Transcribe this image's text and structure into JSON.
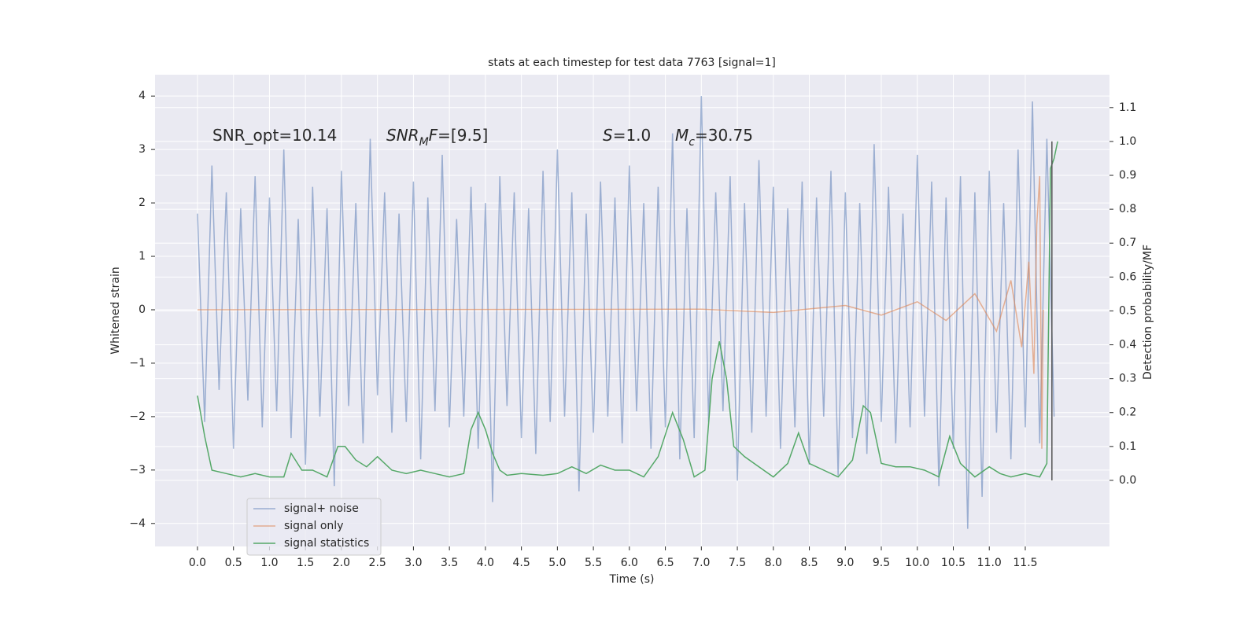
{
  "chart_data": {
    "type": "line",
    "title": "stats at each timestep for test data 7763 [signal=1]",
    "x_label": "Time (s)",
    "y_label": "Whitened strain",
    "y2_label": "Detection probability/MF",
    "xlim": [
      -0.59,
      12.67
    ],
    "ylim": [
      -4.43,
      4.4
    ],
    "y2lim": [
      -0.195,
      1.197
    ],
    "xticks": [
      {
        "value": 0,
        "label": "0.0"
      },
      0.5,
      {
        "value": 1,
        "label": "1.0"
      },
      1.5,
      {
        "value": 2,
        "label": "2.0"
      },
      2.5,
      {
        "value": 3,
        "label": "3.0"
      },
      3.5,
      {
        "value": 4,
        "label": "4.0"
      },
      4.5,
      {
        "value": 5,
        "label": "5.0"
      },
      5.5,
      {
        "value": 6,
        "label": "6.0"
      },
      6.5,
      {
        "value": 7,
        "label": "7.0"
      },
      7.5,
      {
        "value": 8,
        "label": "8.0"
      },
      8.5,
      {
        "value": 9,
        "label": "9.0"
      },
      9.5,
      {
        "value": 10,
        "label": "10.0"
      },
      10.5,
      {
        "value": 11,
        "label": "11.0"
      },
      11.5
    ],
    "yticks": [
      {
        "value": -4,
        "label": "−4"
      },
      {
        "value": -3,
        "label": "−3"
      },
      {
        "value": -2,
        "label": "−2"
      },
      {
        "value": -1,
        "label": "−1"
      },
      0,
      1,
      2,
      3,
      4
    ],
    "y2ticks": [
      {
        "value": 0,
        "label": "0.0"
      },
      0.1,
      0.2,
      0.3,
      0.4,
      0.5,
      0.6,
      0.7,
      0.8,
      0.9,
      {
        "value": 1,
        "label": "1.0"
      },
      1.1
    ],
    "grid": true,
    "legend": "lower left",
    "series": [
      {
        "name": "signal+ noise",
        "color": "#4c72b0",
        "opacity": 0.5,
        "x": [
          0,
          0.1,
          0.2,
          0.3,
          0.4,
          0.5,
          0.6,
          0.7,
          0.8,
          0.9,
          1,
          1.1,
          1.2,
          1.3,
          1.4,
          1.5,
          1.6,
          1.7,
          1.8,
          1.9,
          2,
          2.1,
          2.2,
          2.3,
          2.4,
          2.5,
          2.6,
          2.7,
          2.8,
          2.9,
          3,
          3.1,
          3.2,
          3.3,
          3.4,
          3.5,
          3.6,
          3.7,
          3.8,
          3.9,
          4,
          4.1,
          4.2,
          4.3,
          4.4,
          4.5,
          4.6,
          4.7,
          4.8,
          4.9,
          5,
          5.1,
          5.2,
          5.3,
          5.4,
          5.5,
          5.6,
          5.7,
          5.8,
          5.9,
          6,
          6.1,
          6.2,
          6.3,
          6.4,
          6.5,
          6.6,
          6.7,
          6.8,
          6.9,
          7,
          7.1,
          7.2,
          7.3,
          7.4,
          7.5,
          7.6,
          7.7,
          7.8,
          7.9,
          8,
          8.1,
          8.2,
          8.3,
          8.4,
          8.5,
          8.6,
          8.7,
          8.8,
          8.9,
          9,
          9.1,
          9.2,
          9.3,
          9.4,
          9.5,
          9.6,
          9.7,
          9.8,
          9.9,
          10,
          10.1,
          10.2,
          10.3,
          10.4,
          10.5,
          10.6,
          10.7,
          10.8,
          10.9,
          11,
          11.1,
          11.2,
          11.3,
          11.4,
          11.5,
          11.6,
          11.7,
          11.8,
          11.9
        ],
        "values": [
          1.8,
          -2.1,
          2.7,
          -1.5,
          2.2,
          -2.6,
          1.9,
          -1.7,
          2.5,
          -2.2,
          2.1,
          -1.9,
          3.0,
          -2.4,
          1.7,
          -2.9,
          2.3,
          -2.0,
          1.9,
          -3.3,
          2.6,
          -1.8,
          2.0,
          -2.5,
          3.2,
          -1.6,
          2.2,
          -2.3,
          1.8,
          -2.1,
          2.4,
          -2.8,
          2.1,
          -1.9,
          2.9,
          -2.2,
          1.7,
          -2.0,
          2.3,
          -2.6,
          2.0,
          -3.6,
          2.5,
          -1.8,
          2.2,
          -2.4,
          1.9,
          -2.7,
          2.6,
          -2.1,
          3.0,
          -2.0,
          2.2,
          -3.4,
          1.8,
          -2.3,
          2.4,
          -2.0,
          2.1,
          -2.5,
          2.7,
          -1.9,
          2.0,
          -2.6,
          2.3,
          -2.2,
          3.3,
          -2.8,
          1.9,
          -2.4,
          4.0,
          -2.1,
          2.2,
          -1.9,
          2.5,
          -3.2,
          2.0,
          -2.3,
          2.8,
          -2.0,
          2.3,
          -2.6,
          1.9,
          -2.2,
          2.4,
          -2.9,
          2.1,
          -2.0,
          2.6,
          -3.1,
          2.2,
          -2.4,
          2.0,
          -2.7,
          3.1,
          -2.1,
          2.3,
          -2.5,
          1.8,
          -2.2,
          2.9,
          -2.0,
          2.4,
          -3.3,
          2.1,
          -2.6,
          2.5,
          -4.1,
          2.2,
          -3.5,
          2.6,
          -2.3,
          2.0,
          -2.8,
          3.0,
          -2.2,
          3.9,
          -2.5,
          3.2,
          -2.0
        ]
      },
      {
        "name": "signal only",
        "color": "#dd8452",
        "opacity": 0.6,
        "x": [
          0,
          7,
          8,
          9,
          9.5,
          10,
          10.4,
          10.8,
          11.1,
          11.3,
          11.45,
          11.55,
          11.62,
          11.66,
          11.7,
          11.73,
          11.75
        ],
        "values": [
          0,
          0.01,
          -0.05,
          0.08,
          -0.1,
          0.15,
          -0.2,
          0.3,
          -0.4,
          0.55,
          -0.7,
          0.9,
          -1.2,
          1.6,
          2.5,
          -2.6,
          0
        ]
      },
      {
        "name": "signal statistics",
        "color": "#55a868",
        "opacity": 1,
        "axis": "y2",
        "x": [
          0,
          0.1,
          0.2,
          0.4,
          0.6,
          0.8,
          1.0,
          1.2,
          1.3,
          1.45,
          1.6,
          1.8,
          1.95,
          2.05,
          2.2,
          2.35,
          2.5,
          2.7,
          2.9,
          3.1,
          3.3,
          3.5,
          3.7,
          3.8,
          3.9,
          4.0,
          4.1,
          4.2,
          4.3,
          4.5,
          4.8,
          5.0,
          5.2,
          5.4,
          5.6,
          5.8,
          6.0,
          6.2,
          6.4,
          6.6,
          6.75,
          6.9,
          7.05,
          7.15,
          7.25,
          7.35,
          7.45,
          7.6,
          7.8,
          8.0,
          8.2,
          8.35,
          8.5,
          8.7,
          8.9,
          9.1,
          9.25,
          9.35,
          9.5,
          9.7,
          9.9,
          10.1,
          10.3,
          10.45,
          10.6,
          10.8,
          11.0,
          11.15,
          11.3,
          11.5,
          11.7,
          11.8,
          11.85,
          11.9,
          11.95
        ],
        "values": [
          0.25,
          0.13,
          0.03,
          0.02,
          0.01,
          0.02,
          0.01,
          0.01,
          0.08,
          0.03,
          0.03,
          0.01,
          0.1,
          0.1,
          0.06,
          0.04,
          0.07,
          0.03,
          0.02,
          0.03,
          0.02,
          0.01,
          0.02,
          0.15,
          0.2,
          0.15,
          0.08,
          0.03,
          0.015,
          0.02,
          0.015,
          0.02,
          0.04,
          0.02,
          0.045,
          0.03,
          0.03,
          0.01,
          0.07,
          0.2,
          0.12,
          0.01,
          0.03,
          0.3,
          0.41,
          0.3,
          0.1,
          0.07,
          0.04,
          0.01,
          0.05,
          0.14,
          0.05,
          0.03,
          0.01,
          0.06,
          0.22,
          0.2,
          0.05,
          0.04,
          0.04,
          0.03,
          0.01,
          0.13,
          0.05,
          0.01,
          0.04,
          0.02,
          0.01,
          0.02,
          0.01,
          0.05,
          0.92,
          0.95,
          1.0
        ]
      }
    ],
    "vlines": [
      {
        "x": 11.87,
        "ymin": 0,
        "ymax": 1.0,
        "axis": "y2",
        "color": "#555555"
      }
    ],
    "annotations": [
      {
        "parts": [
          {
            "text": "SNR_opt=10.14"
          }
        ]
      },
      {
        "parts": [
          {
            "text": "SNR",
            "italic": true
          },
          {
            "text": "M",
            "italic": true,
            "sub": true
          },
          {
            "text": "F",
            "italic": true
          },
          {
            "text": "=[9.5]"
          }
        ]
      },
      {
        "parts": [
          {
            "text": "S",
            "italic": true
          },
          {
            "text": "=1.0"
          }
        ]
      },
      {
        "parts": [
          {
            "text": "M",
            "italic": true
          },
          {
            "text": "c",
            "italic": true,
            "sub": true
          },
          {
            "text": "=30.75"
          }
        ]
      }
    ]
  }
}
